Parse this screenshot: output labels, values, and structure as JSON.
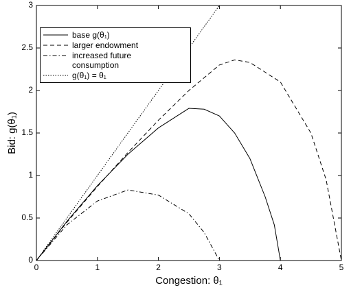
{
  "chart_data": {
    "type": "line",
    "xlabel": "Congestion: θ₁",
    "ylabel": "Bid: g(θ₁)",
    "xlim": [
      0,
      5
    ],
    "ylim": [
      0,
      3
    ],
    "xticks": [
      0,
      1,
      2,
      3,
      4,
      5
    ],
    "yticks": [
      0,
      0.5,
      1,
      1.5,
      2,
      2.5,
      3
    ],
    "grid": false,
    "legend": "upper left",
    "series": [
      {
        "name": "base g(θ₁)",
        "color": "#000000",
        "linestyle": "solid",
        "x": [
          0,
          0.5,
          1,
          1.5,
          2,
          2.5,
          2.75,
          3,
          3.25,
          3.5,
          3.75,
          3.9,
          4
        ],
        "values": [
          0,
          0.46,
          0.88,
          1.25,
          1.56,
          1.79,
          1.78,
          1.7,
          1.5,
          1.2,
          0.75,
          0.42,
          0
        ]
      },
      {
        "name": "larger endowment",
        "color": "#000000",
        "linestyle": "dashed",
        "x": [
          0,
          0.5,
          1,
          1.5,
          2,
          2.5,
          3,
          3.25,
          3.5,
          4,
          4.5,
          4.75,
          5
        ],
        "values": [
          0,
          0.45,
          0.87,
          1.27,
          1.65,
          2.0,
          2.3,
          2.36,
          2.33,
          2.1,
          1.5,
          0.95,
          0
        ]
      },
      {
        "name": "increased future consumption",
        "color": "#000000",
        "linestyle": "dashdot",
        "x": [
          0,
          0.5,
          1,
          1.5,
          2,
          2.5,
          2.75,
          3
        ],
        "values": [
          0,
          0.42,
          0.7,
          0.83,
          0.77,
          0.55,
          0.33,
          0
        ]
      },
      {
        "name": "g(θ₁) = θ₁",
        "color": "#000000",
        "linestyle": "dotted",
        "x": [
          0,
          3
        ],
        "values": [
          0,
          3
        ]
      }
    ]
  }
}
